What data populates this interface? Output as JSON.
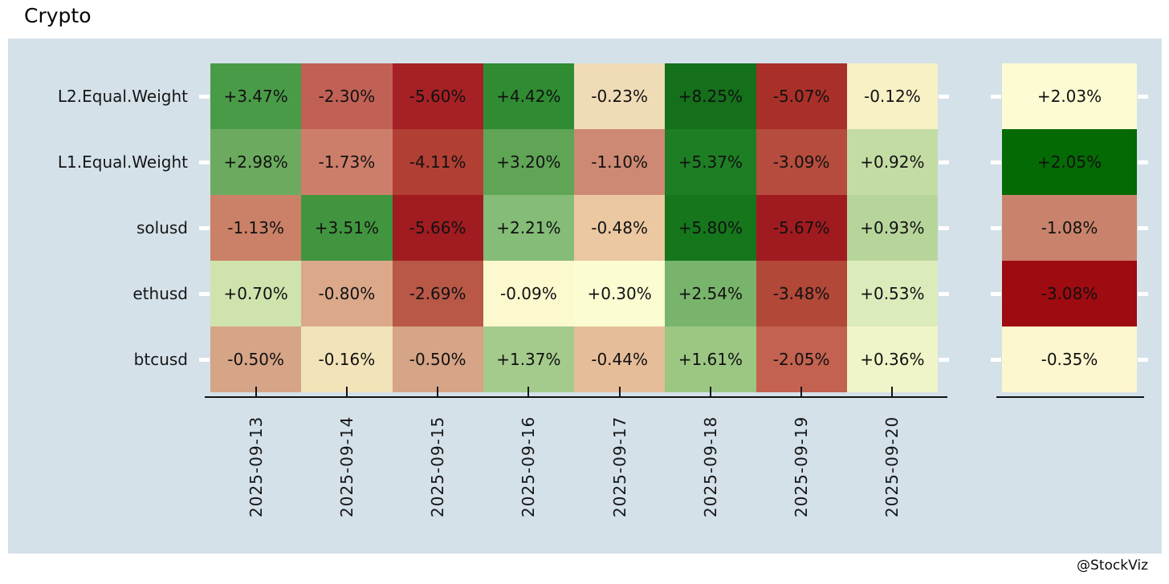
{
  "title": "Crypto",
  "watermark": "@StockViz",
  "panel_background": "#d4e1e9",
  "chart_data": {
    "type": "heatmap",
    "title": "Crypto",
    "value_unit": "percent_daily_return",
    "colormap": "red-yellow-green",
    "legend": "none",
    "rows": [
      "L2.Equal.Weight",
      "L1.Equal.Weight",
      "solusd",
      "ethusd",
      "btcusd"
    ],
    "columns": [
      "2025-09-13",
      "2025-09-14",
      "2025-09-15",
      "2025-09-16",
      "2025-09-17",
      "2025-09-18",
      "2025-09-19",
      "2025-09-20"
    ],
    "series": [
      {
        "name": "L2.Equal.Weight",
        "values": [
          3.47,
          -2.3,
          -5.6,
          4.42,
          -0.23,
          8.25,
          -5.07,
          -0.12
        ],
        "labels": [
          "+3.47%",
          "-2.30%",
          "-5.60%",
          "+4.42%",
          "-0.23%",
          "+8.25%",
          "-5.07%",
          "-0.12%"
        ],
        "colors": [
          "#4a9b48",
          "#c16156",
          "#a52125",
          "#308c32",
          "#f0dbb7",
          "#14701a",
          "#a93029",
          "#f8f1c5"
        ]
      },
      {
        "name": "L1.Equal.Weight",
        "values": [
          2.98,
          -1.73,
          -4.11,
          3.2,
          -1.1,
          5.37,
          -3.09,
          0.92
        ],
        "labels": [
          "+2.98%",
          "-1.73%",
          "-4.11%",
          "+3.20%",
          "-1.10%",
          "+5.37%",
          "-3.09%",
          "+0.92%"
        ],
        "colors": [
          "#6cab5f",
          "#cd7e6a",
          "#b23f34",
          "#60a556",
          "#cd8973",
          "#1e7e24",
          "#b54c3d",
          "#c3dca4"
        ]
      },
      {
        "name": "solusd",
        "values": [
          -1.13,
          3.51,
          -5.66,
          2.21,
          -0.48,
          5.8,
          -5.67,
          0.93
        ],
        "labels": [
          "-1.13%",
          "+3.51%",
          "-5.66%",
          "+2.21%",
          "-0.48%",
          "+5.80%",
          "-5.67%",
          "+0.93%"
        ],
        "colors": [
          "#ca8168",
          "#41953f",
          "#a01c20",
          "#85bc78",
          "#ebc8a1",
          "#15761b",
          "#a01b1f",
          "#b7d59b"
        ]
      },
      {
        "name": "ethusd",
        "values": [
          0.7,
          -0.8,
          -2.69,
          -0.09,
          0.3,
          2.54,
          -3.48,
          0.53
        ],
        "labels": [
          "+0.70%",
          "-0.80%",
          "-2.69%",
          "-0.09%",
          "+0.30%",
          "+2.54%",
          "-3.48%",
          "+0.53%"
        ],
        "colors": [
          "#cfe3ad",
          "#dba88a",
          "#b95847",
          "#fcf9ce",
          "#fbfcd1",
          "#79b46c",
          "#b24837",
          "#dcebbc"
        ]
      },
      {
        "name": "btcusd",
        "values": [
          -0.5,
          -0.16,
          -0.5,
          1.37,
          -0.44,
          1.61,
          -2.05,
          0.36
        ],
        "labels": [
          "-0.50%",
          "-0.16%",
          "-0.50%",
          "+1.37%",
          "-0.44%",
          "+1.61%",
          "-2.05%",
          "+0.36%"
        ],
        "colors": [
          "#d6a486",
          "#f2e3b9",
          "#d6a486",
          "#a4cb8c",
          "#e6bd99",
          "#9cc783",
          "#c36250",
          "#eff5c8"
        ]
      }
    ],
    "summary_column": {
      "values": [
        2.03,
        2.05,
        -1.08,
        -3.08,
        -0.35
      ],
      "labels": [
        "+2.03%",
        "+2.05%",
        "-1.08%",
        "-3.08%",
        "-0.35%"
      ],
      "colors": [
        "#fdfbd3",
        "#046a04",
        "#c9836c",
        "#9e0b10",
        "#fdf7cf"
      ]
    }
  }
}
